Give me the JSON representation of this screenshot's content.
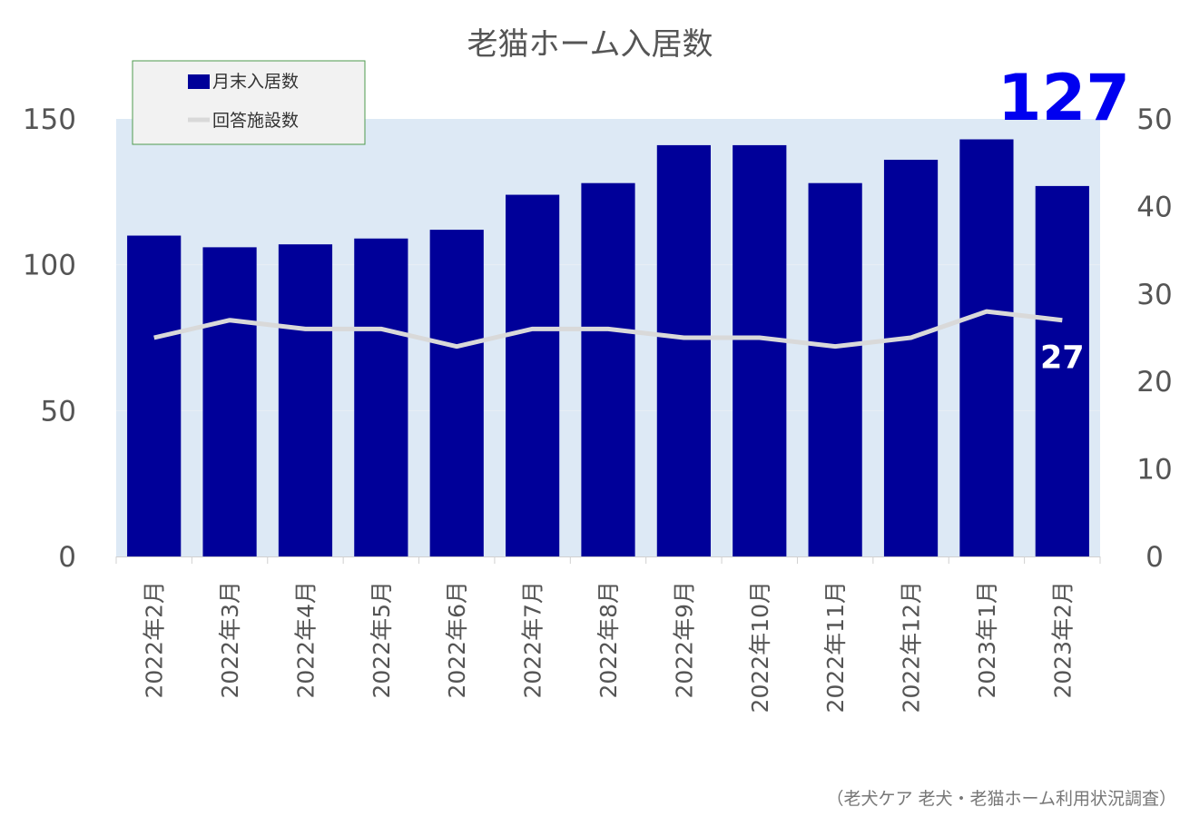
{
  "chart_data": {
    "type": "bar",
    "title": "老猫ホーム入居数",
    "categories": [
      "2022年2月",
      "2022年3月",
      "2022年4月",
      "2022年5月",
      "2022年6月",
      "2022年7月",
      "2022年8月",
      "2022年9月",
      "2022年10月",
      "2022年11月",
      "2022年12月",
      "2023年1月",
      "2023年2月"
    ],
    "series": [
      {
        "name": "月末入居数",
        "type": "bar",
        "axis": "left",
        "color": "#000099",
        "values": [
          110,
          106,
          107,
          109,
          112,
          124,
          128,
          141,
          141,
          128,
          136,
          143,
          127
        ]
      },
      {
        "name": "回答施設数",
        "type": "line",
        "axis": "right",
        "color": "#d9d9d9",
        "values": [
          25,
          27,
          26,
          26,
          24,
          26,
          26,
          25,
          25,
          24,
          25,
          28,
          27
        ]
      }
    ],
    "y_left": {
      "min": 0,
      "max": 150,
      "ticks": [
        0,
        50,
        100,
        150
      ]
    },
    "y_right": {
      "min": 0,
      "max": 50,
      "ticks": [
        0,
        10,
        20,
        30,
        40,
        50
      ]
    },
    "legend_position": "top-left",
    "plot_background": "#dde9f5",
    "highlight_label": "127",
    "end_label": "27",
    "source": "（老犬ケア 老犬・老猫ホーム利用状況調査）"
  }
}
